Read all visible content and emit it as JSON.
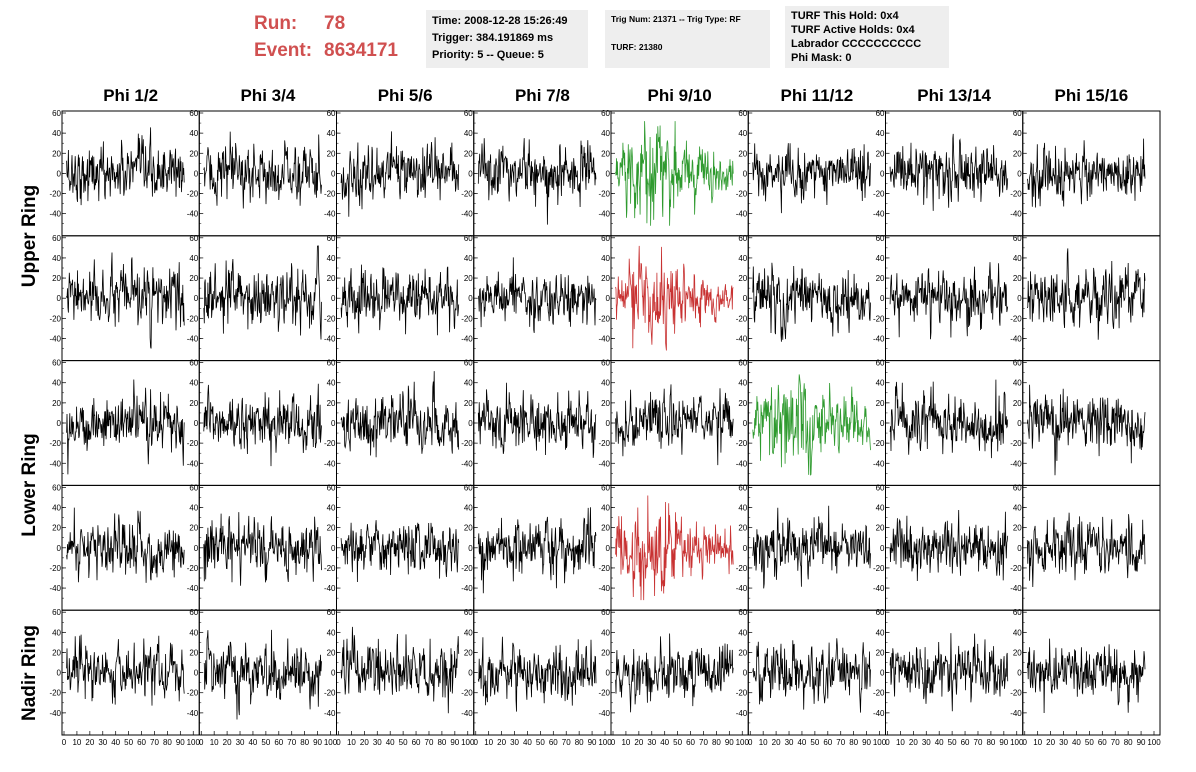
{
  "header": {
    "run_label": "Run:",
    "run_value": "78",
    "event_label": "Event:",
    "event_value": "8634171",
    "time_box": {
      "time": "Time: 2008-12-28 15:26:49",
      "trigger": "Trigger: 384.191869 ms",
      "priority": "Priority: 5 -- Queue: 5"
    },
    "trig_box": {
      "trig": "Trig Num: 21371 -- Trig Type: RF",
      "turf": "TURF: 21380"
    },
    "turf_box": {
      "this_hold": "TURF This Hold: 0x4",
      "active_holds": "TURF Active Holds: 0x4",
      "labrador": "Labrador CCCCCCCCCC",
      "phi_mask": "Phi Mask: 0"
    }
  },
  "colors": {
    "run_text": "#d05050",
    "trace_default": "#000000",
    "trace_green": "#2e9a2e",
    "trace_red": "#c83232",
    "box_bg": "#eeeeee"
  },
  "chart_data": {
    "type": "line",
    "description_note": "Grid of waveform panels: 8 phi columns x 5 ring rows",
    "columns": [
      "Phi 1/2",
      "Phi 3/4",
      "Phi 5/6",
      "Phi 7/8",
      "Phi 9/10",
      "Phi 11/12",
      "Phi 13/14",
      "Phi 15/16"
    ],
    "row_groups": [
      {
        "label": "Upper Ring",
        "rows": [
          0,
          1
        ]
      },
      {
        "label": "Lower Ring",
        "rows": [
          2,
          3
        ]
      },
      {
        "label": "Nadir Ring",
        "rows": [
          4
        ]
      }
    ],
    "xlim": [
      0,
      100
    ],
    "ylim": [
      -60,
      60
    ],
    "yticks": [
      -40,
      -20,
      0,
      20,
      40,
      60
    ],
    "xticks": [
      0,
      10,
      20,
      30,
      40,
      50,
      60,
      70,
      80,
      90,
      100
    ],
    "highlighted_panels": [
      {
        "row": 0,
        "col": 4,
        "color": "green"
      },
      {
        "row": 1,
        "col": 4,
        "color": "red"
      },
      {
        "row": 2,
        "col": 5,
        "color": "green"
      },
      {
        "row": 3,
        "col": 4,
        "color": "red"
      }
    ]
  }
}
